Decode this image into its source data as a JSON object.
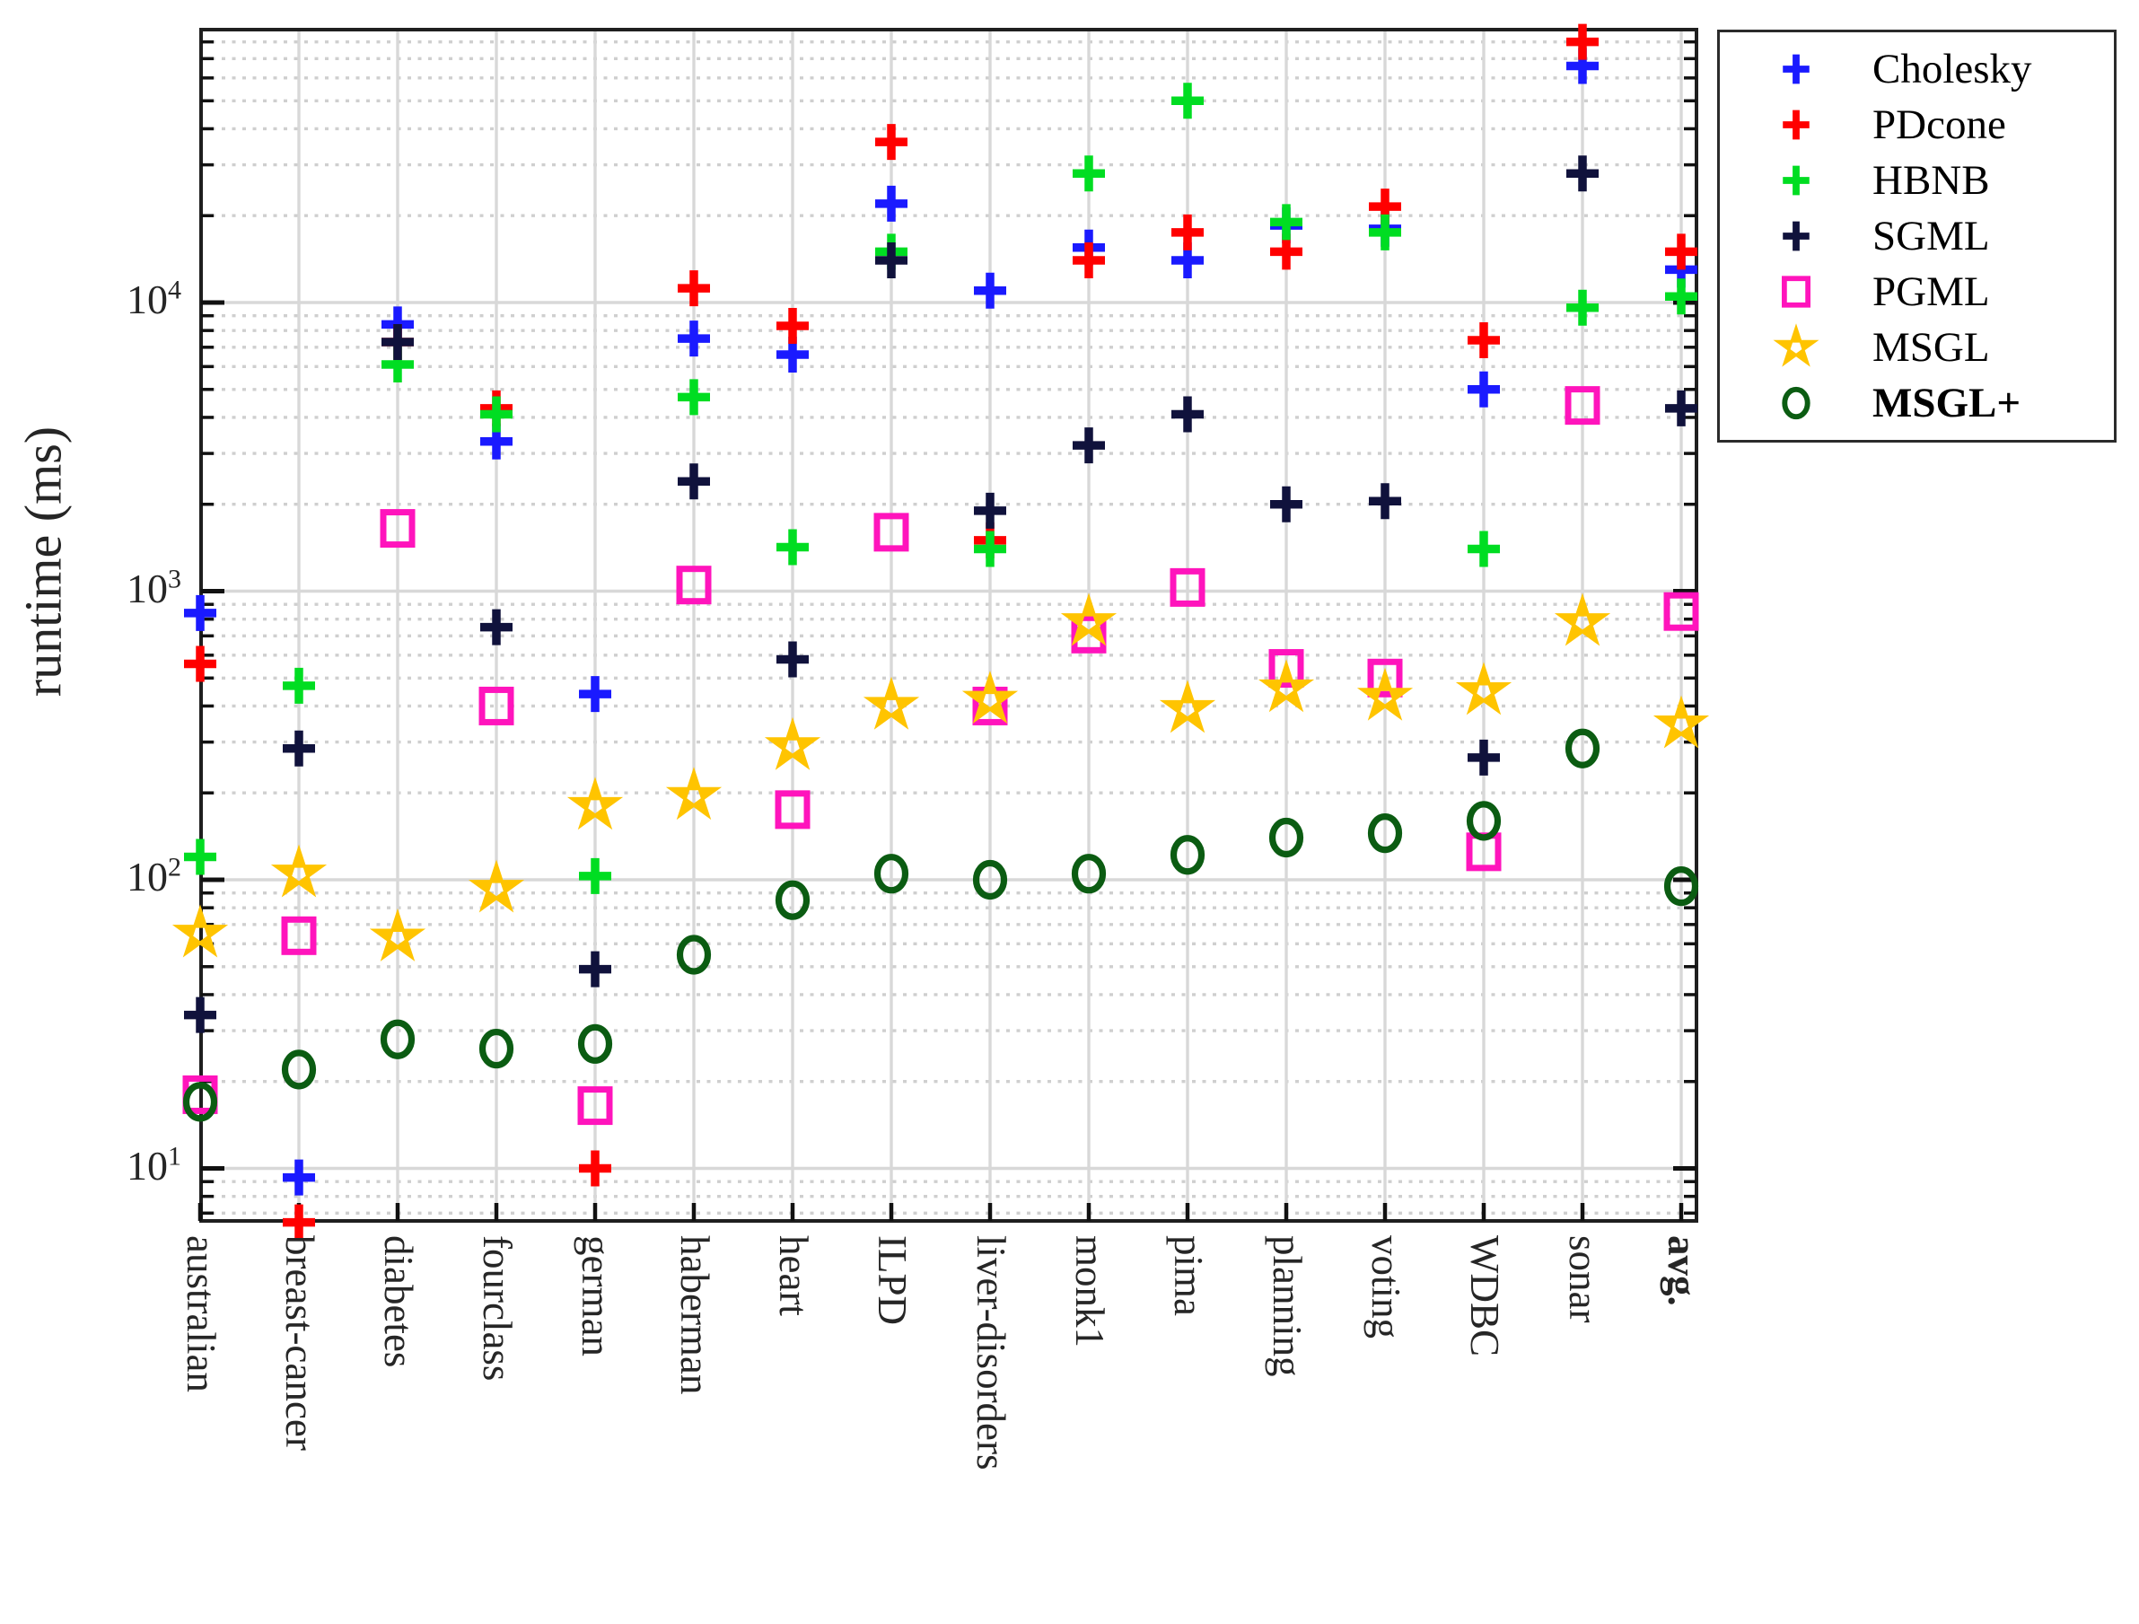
{
  "figure": {
    "ylabel": "runtime (ms)"
  },
  "axes": {
    "yscale": "log",
    "ylim": [
      6.5,
      88000
    ],
    "yticks": [
      {
        "base": "10",
        "exp": "1",
        "value": 10
      },
      {
        "base": "10",
        "exp": "2",
        "value": 100
      },
      {
        "base": "10",
        "exp": "3",
        "value": 1000
      },
      {
        "base": "10",
        "exp": "4",
        "value": 10000
      }
    ],
    "grid_major_color": "#d8d8d8",
    "grid_minor_color": "#cfcfcf",
    "spine_color": "#1f1f1f"
  },
  "chart_data": {
    "type": "scatter",
    "yscale": "log",
    "title": "",
    "xlabel": "",
    "ylabel": "runtime (ms)",
    "legend_position": "outside-upper-right",
    "categories": [
      {
        "label": "australian",
        "bold": false
      },
      {
        "label": "breast-cancer",
        "bold": false
      },
      {
        "label": "diabetes",
        "bold": false
      },
      {
        "label": "fourclass",
        "bold": false
      },
      {
        "label": "german",
        "bold": false
      },
      {
        "label": "haberman",
        "bold": false
      },
      {
        "label": "heart",
        "bold": false
      },
      {
        "label": "ILPD",
        "bold": false
      },
      {
        "label": "liver-disorders",
        "bold": false
      },
      {
        "label": "monk1",
        "bold": false
      },
      {
        "label": "pima",
        "bold": false
      },
      {
        "label": "planning",
        "bold": false
      },
      {
        "label": "voting",
        "bold": false
      },
      {
        "label": "WDBC",
        "bold": false
      },
      {
        "label": "sonar",
        "bold": false
      },
      {
        "label": "avg.",
        "bold": true
      }
    ],
    "series": [
      {
        "name": "Cholesky",
        "marker": "plus",
        "color": "#1a1aff",
        "bold_label": false,
        "values": [
          840,
          9.3,
          8400,
          3300,
          440,
          7500,
          6600,
          22000,
          11000,
          15500,
          14000,
          18500,
          18000,
          5000,
          66000,
          13000
        ]
      },
      {
        "name": "PDcone",
        "marker": "plus",
        "color": "#ff0000",
        "bold_label": false,
        "values": [
          560,
          6.5,
          7300,
          4300,
          10,
          11200,
          8300,
          36000,
          1500,
          14000,
          17500,
          15000,
          21500,
          7400,
          80000,
          15000
        ]
      },
      {
        "name": "HBNB",
        "marker": "plus",
        "color": "#00dd22",
        "bold_label": false,
        "values": [
          120,
          470,
          6100,
          4100,
          103,
          4700,
          1420,
          15000,
          1400,
          28000,
          50000,
          19000,
          17500,
          1400,
          9600,
          10500
        ]
      },
      {
        "name": "SGML",
        "marker": "plus",
        "color": "#10123c",
        "bold_label": false,
        "values": [
          34,
          285,
          7300,
          750,
          49,
          2400,
          580,
          14000,
          1900,
          3200,
          4100,
          2000,
          2050,
          265,
          28000,
          4300
        ]
      },
      {
        "name": "PGML",
        "marker": "square",
        "color": "#ff14bc",
        "bold_label": false,
        "values": [
          18,
          64,
          1650,
          400,
          16.5,
          1050,
          175,
          1600,
          400,
          710,
          1030,
          540,
          500,
          125,
          4400,
          850
        ]
      },
      {
        "name": "MSGL",
        "marker": "star",
        "color": "#ffc400",
        "bold_label": false,
        "values": [
          65,
          105,
          63,
          93,
          180,
          195,
          290,
          400,
          420,
          780,
          390,
          460,
          430,
          450,
          780,
          345
        ]
      },
      {
        "name": "MSGL+",
        "marker": "circle",
        "color": "#0b5c12",
        "bold_label": true,
        "values": [
          17,
          22,
          28,
          26,
          27,
          55,
          85,
          105,
          100,
          105,
          122,
          140,
          145,
          160,
          285,
          95
        ]
      }
    ]
  }
}
